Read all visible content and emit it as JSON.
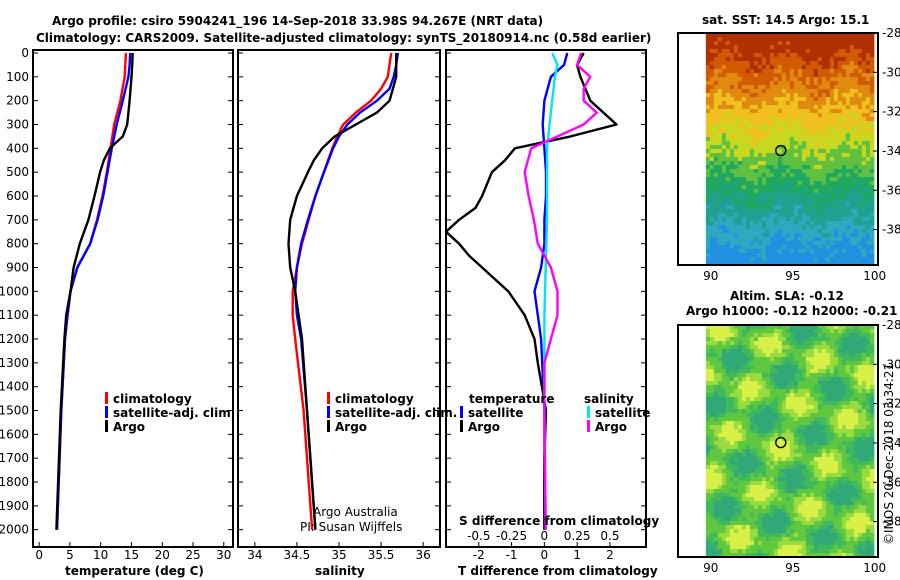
{
  "header": {
    "line1": "Argo profile: csiro 5904241_196 14-Sep-2018 33.98S 94.267E (NRT data)",
    "line2": "Climatology: CARS2009. Satellite-adjusted climatology: synTS_20180914.nc (0.58d earlier)"
  },
  "colors": {
    "climatology": "#ff0000",
    "satellite": "#0000ff",
    "argo": "#000000",
    "sat_salinity": "#00e5ee",
    "argo_salinity": "#ff00ff"
  },
  "credits": {
    "argo_australia": "Argo Australia",
    "pi": "PI: Susan Wijffels",
    "imos": "©IMOS 20-Dec-2018 03:34:21"
  },
  "chart_data": [
    {
      "id": "temperature",
      "type": "line",
      "xlabel": "temperature (deg C)",
      "ylabel": "",
      "xlim": [
        -1,
        31.5
      ],
      "ylim": [
        2060,
        0
      ],
      "xticks": [
        "0",
        "5",
        "10",
        "15",
        "20",
        "25",
        "30"
      ],
      "yticks": [
        "0",
        "100",
        "200",
        "300",
        "400",
        "500",
        "600",
        "700",
        "800",
        "900",
        "1000",
        "1100",
        "1200",
        "1300",
        "1400",
        "1500",
        "1600",
        "1700",
        "1800",
        "1900",
        "2000"
      ],
      "legend": [
        "climatology",
        "satellite-adj. clim.",
        "Argo"
      ],
      "series": [
        {
          "name": "climatology",
          "depth": [
            0,
            50,
            100,
            200,
            300,
            400,
            500,
            600,
            700,
            800,
            900,
            1000,
            1100,
            1200,
            1500,
            2000
          ],
          "values": [
            14.1,
            14.0,
            13.9,
            13.2,
            12.2,
            11.6,
            11.0,
            10.3,
            9.4,
            8.3,
            6.2,
            5.1,
            4.6,
            4.2,
            3.6,
            2.9
          ]
        },
        {
          "name": "satellite-adj. clim.",
          "depth": [
            0,
            50,
            100,
            200,
            300,
            400,
            500,
            600,
            700,
            800,
            900,
            1000,
            1100,
            1200,
            1500,
            2000
          ],
          "values": [
            14.8,
            14.7,
            14.5,
            13.6,
            12.6,
            11.8,
            11.1,
            10.4,
            9.5,
            8.3,
            6.2,
            5.1,
            4.6,
            4.2,
            3.6,
            2.9
          ]
        },
        {
          "name": "Argo",
          "depth": [
            0,
            60,
            100,
            200,
            300,
            350,
            400,
            450,
            500,
            600,
            700,
            800,
            900,
            1000,
            1100,
            1200,
            1500,
            2000
          ],
          "values": [
            15.2,
            15.1,
            15.0,
            14.7,
            14.3,
            13.6,
            11.5,
            10.5,
            9.9,
            9.0,
            8.0,
            6.6,
            5.6,
            5.1,
            4.4,
            4.1,
            3.5,
            2.8
          ]
        }
      ]
    },
    {
      "id": "salinity",
      "type": "line",
      "xlabel": "salinity",
      "ylabel": "",
      "xlim": [
        33.8,
        36.2
      ],
      "ylim": [
        2060,
        0
      ],
      "xticks": [
        "34",
        "34.5",
        "35",
        "35.5",
        "36"
      ],
      "legend": [
        "climatology",
        "satellite-adj. clim.",
        "Argo"
      ],
      "series": [
        {
          "name": "climatology",
          "depth": [
            0,
            50,
            100,
            150,
            200,
            250,
            300,
            350,
            400,
            500,
            600,
            700,
            800,
            900,
            1000,
            1100,
            1200,
            1500,
            2000
          ],
          "values": [
            35.62,
            35.6,
            35.58,
            35.5,
            35.38,
            35.2,
            35.05,
            34.98,
            34.92,
            34.82,
            34.72,
            34.64,
            34.56,
            34.5,
            34.45,
            34.45,
            34.48,
            34.58,
            34.68
          ]
        },
        {
          "name": "satellite-adj. clim.",
          "depth": [
            0,
            50,
            100,
            150,
            200,
            250,
            300,
            350,
            400,
            500,
            600,
            700,
            800,
            900,
            1000,
            1100,
            1200,
            1500,
            2000
          ],
          "values": [
            35.7,
            35.68,
            35.65,
            35.6,
            35.45,
            35.25,
            35.1,
            35.0,
            34.93,
            34.82,
            34.72,
            34.63,
            34.55,
            34.5,
            34.48,
            34.5,
            34.55,
            34.62,
            34.72
          ]
        },
        {
          "name": "Argo",
          "depth": [
            0,
            60,
            100,
            150,
            200,
            250,
            300,
            350,
            400,
            450,
            500,
            600,
            700,
            800,
            900,
            1000,
            1100,
            1200,
            1500,
            2000
          ],
          "values": [
            35.68,
            35.68,
            35.68,
            35.64,
            35.6,
            35.45,
            35.2,
            34.95,
            34.8,
            34.7,
            34.63,
            34.5,
            34.42,
            34.4,
            34.42,
            34.48,
            34.52,
            34.56,
            34.62,
            34.72
          ]
        }
      ]
    },
    {
      "id": "difference",
      "type": "line",
      "xlabel": "T difference from climatology",
      "secondary_xlabel": "S difference from climatology",
      "xlim": [
        -3,
        3.1
      ],
      "ylim": [
        2060,
        0
      ],
      "xticks": [
        "-2",
        "-1",
        "0",
        "1",
        "2"
      ],
      "secondary_xticks": [
        "-0.5",
        "-0.25",
        "0",
        "0.25",
        "0.5"
      ],
      "legend_temperature_title": "temperature",
      "legend_salinity_title": "salinity",
      "legend_temperature": [
        "satellite",
        "Argo"
      ],
      "legend_salinity": [
        "satellite",
        "Argo"
      ],
      "series": [
        {
          "name": "temperature satellite",
          "depth": [
            0,
            50,
            100,
            150,
            200,
            300,
            400,
            500,
            600,
            700,
            800,
            900,
            1000,
            1100,
            1200,
            1500,
            2000
          ],
          "values": [
            0.7,
            0.6,
            0.2,
            0.1,
            0.0,
            -0.05,
            0.0,
            0.05,
            0.05,
            0.0,
            0.0,
            -0.1,
            -0.3,
            -0.2,
            -0.1,
            0.0,
            0.0
          ]
        },
        {
          "name": "temperature Argo",
          "depth": [
            0,
            50,
            100,
            200,
            300,
            350,
            400,
            450,
            500,
            600,
            650,
            700,
            750,
            800,
            850,
            900,
            1000,
            1100,
            1200,
            1300,
            1500,
            1700,
            2000
          ],
          "values": [
            1.2,
            1.0,
            1.1,
            1.4,
            2.2,
            0.8,
            -0.9,
            -1.2,
            -1.6,
            -1.9,
            -2.1,
            -2.6,
            -3.0,
            -2.6,
            -2.3,
            -1.9,
            -1.1,
            -0.6,
            -0.3,
            -0.2,
            0.05,
            0.0,
            0.0
          ]
        },
        {
          "name": "salinity satellite",
          "depth": [
            0,
            50,
            100,
            200,
            300,
            400,
            500,
            700,
            900,
            1100,
            1300,
            1500,
            2000
          ],
          "values": [
            0.06,
            0.1,
            0.08,
            0.06,
            0.04,
            0.02,
            0.02,
            0.02,
            0.01,
            0.0,
            0.0,
            0.0,
            0.01
          ]
        },
        {
          "name": "salinity Argo",
          "depth": [
            0,
            50,
            100,
            150,
            200,
            250,
            300,
            400,
            500,
            600,
            700,
            800,
            900,
            1000,
            1100,
            1200,
            1300,
            1500,
            2000
          ],
          "values": [
            0.28,
            0.25,
            0.35,
            0.3,
            0.3,
            0.4,
            0.3,
            -0.1,
            -0.15,
            -0.12,
            -0.08,
            -0.05,
            0.05,
            0.1,
            0.1,
            0.05,
            0.0,
            0.0,
            0.01
          ]
        }
      ]
    },
    {
      "id": "sst_map",
      "type": "heatmap",
      "title": "sat. SST: 14.5 Argo: 15.1",
      "xlim": [
        88,
        100.2
      ],
      "ylim": [
        -39.8,
        -28
      ],
      "xticks": [
        "90",
        "95",
        "100"
      ],
      "yticks": [
        "-28",
        "-30",
        "-32",
        "-34",
        "-36",
        "-38"
      ],
      "argo_position": [
        94.27,
        -33.98
      ]
    },
    {
      "id": "sla_map",
      "type": "heatmap",
      "title": "Altim. SLA: -0.12",
      "subtitle": "Argo h1000: -0.12 h2000: -0.21",
      "xlim": [
        88,
        100.2
      ],
      "ylim": [
        -39.8,
        -28
      ],
      "xticks": [
        "90",
        "95",
        "100"
      ],
      "yticks": [
        "-28",
        "-30",
        "-32",
        "-34",
        "-36",
        "-38"
      ],
      "argo_position": [
        94.27,
        -33.98
      ]
    }
  ]
}
